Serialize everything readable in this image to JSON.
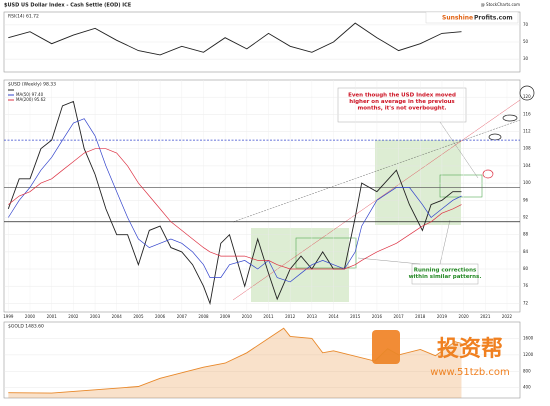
{
  "header": {
    "title": "$USD US Dollar Index - Cash Settle (EOD) ICE",
    "source": "@ StockCharts.com",
    "logo": [
      "Sunshine",
      "Profits.com"
    ]
  },
  "chart_data": [
    {
      "type": "line",
      "title": "$USD (Weekly) 98.33",
      "x": [
        1999,
        1999.5,
        2000,
        2000.5,
        2001,
        2001.5,
        2002,
        2002.5,
        2003,
        2003.5,
        2004,
        2004.5,
        2005,
        2005.5,
        2006,
        2006.5,
        2007,
        2007.5,
        2008,
        2008.3,
        2008.8,
        2009.2,
        2009.9,
        2010.5,
        2011,
        2011.4,
        2012,
        2012.5,
        2013,
        2013.5,
        2014,
        2014.5,
        2015,
        2015.3,
        2016,
        2016.9,
        2017.5,
        2018.1,
        2018.5,
        2019,
        2019.5,
        2019.9
      ],
      "series": [
        {
          "name": "$USD",
          "color": "#222222",
          "values": [
            94,
            101,
            101,
            108,
            110,
            118,
            119,
            108,
            102,
            94,
            88,
            88,
            81,
            89,
            90,
            85,
            84,
            81,
            76,
            72,
            86,
            88,
            76,
            87,
            79,
            73,
            80,
            83,
            80,
            84,
            80,
            80,
            92,
            100,
            98,
            103,
            95,
            89,
            95,
            96,
            98,
            98
          ]
        },
        {
          "name": "MA(50) 97.40",
          "color": "#3344cc",
          "values": [
            92,
            96,
            99,
            103,
            106,
            110,
            114,
            115,
            111,
            104,
            98,
            92,
            87,
            85,
            86,
            87,
            86,
            84,
            81,
            78,
            78,
            81,
            82,
            80,
            82,
            78,
            77,
            79,
            81,
            82,
            81,
            80,
            84,
            90,
            96,
            99,
            99,
            95,
            92,
            94,
            96,
            97
          ]
        },
        {
          "name": "MA(200) 95.62",
          "color": "#dd3344",
          "values": [
            95,
            97,
            98,
            100,
            101,
            103,
            105,
            107,
            108,
            108,
            107,
            104,
            100,
            97,
            94,
            91,
            89,
            87,
            85,
            84,
            83,
            83,
            83,
            82,
            82,
            81,
            80,
            80,
            80,
            80,
            80,
            80,
            81,
            82,
            84,
            86,
            88,
            90,
            91,
            93,
            94,
            95
          ]
        }
      ],
      "xlim": [
        1998.8,
        2022.6
      ],
      "xticks": [
        1999,
        2000,
        2001,
        2002,
        2003,
        2004,
        2005,
        2006,
        2007,
        2008,
        2009,
        2010,
        2011,
        2012,
        2013,
        2014,
        2015,
        2016,
        2017,
        2018,
        2019,
        2020,
        2021,
        2022
      ],
      "ylim": [
        70,
        124
      ],
      "yticks": [
        72,
        76,
        80,
        84,
        88,
        92,
        96,
        100,
        104,
        108,
        112,
        116,
        120
      ],
      "hlines": [
        {
          "value": 91,
          "color": "#222222",
          "dashed": false
        },
        {
          "value": 99,
          "color": "#666666",
          "dashed": false
        },
        {
          "value": 110,
          "color": "#3344cc",
          "dashed": true
        }
      ],
      "annotations": [
        {
          "color": "#cc1122",
          "lines": [
            "Even though the USD Index moved",
            "higher on average in the previous",
            "months, it's not overbought."
          ]
        },
        {
          "color": "#228822",
          "lines": [
            "Running corrections",
            "within similar patterns."
          ]
        }
      ]
    },
    {
      "type": "line",
      "title": "RSI(14) 61.72",
      "x": [
        1999,
        2000,
        2001,
        2002,
        2003,
        2004,
        2005,
        2006,
        2007,
        2008,
        2009,
        2010,
        2011,
        2012,
        2013,
        2014,
        2015,
        2016,
        2017,
        2018,
        2019,
        2019.9
      ],
      "series": [
        {
          "name": "RSI(14)",
          "color": "#222222",
          "values": [
            55,
            62,
            48,
            58,
            66,
            52,
            40,
            35,
            45,
            38,
            55,
            42,
            60,
            45,
            38,
            50,
            72,
            55,
            40,
            48,
            60,
            62
          ]
        }
      ],
      "xlim": [
        1998.8,
        2022.6
      ],
      "ylim": [
        15,
        85
      ],
      "yticks": [
        30,
        50,
        70
      ]
    },
    {
      "type": "area",
      "title": "$GOLD 1483.60",
      "x": [
        1999,
        2001,
        2003,
        2005,
        2006,
        2008,
        2009,
        2010,
        2011.7,
        2012,
        2013,
        2013.5,
        2014,
        2015.9,
        2016.5,
        2017,
        2018,
        2018.7,
        2019.6,
        2019.9
      ],
      "series": [
        {
          "name": "$GOLD",
          "color": "#e8882a",
          "values": [
            280,
            270,
            350,
            430,
            630,
            900,
            1000,
            1250,
            1850,
            1650,
            1600,
            1250,
            1300,
            1050,
            1350,
            1200,
            1330,
            1180,
            1520,
            1480
          ]
        }
      ],
      "xlim": [
        1998.8,
        2022.6
      ],
      "ylim": [
        150,
        2000
      ],
      "yticks": [
        400,
        800,
        1200,
        1600
      ]
    }
  ],
  "watermark": {
    "brand": "投资帮",
    "url": "www.51tzb.com"
  }
}
